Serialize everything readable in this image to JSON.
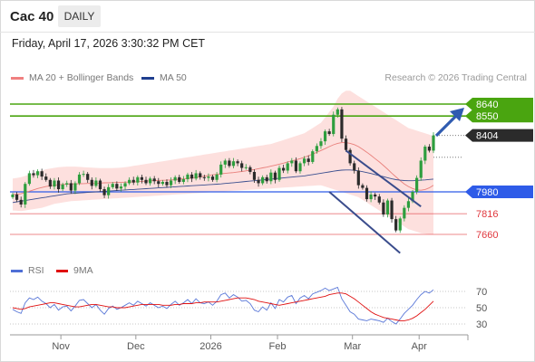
{
  "header": {
    "title": "Cac 40",
    "period": "DAILY",
    "datetime": "Friday, April 17, 2026 3:30:32 PM CET",
    "credit": "Research © 2026 Trading Central"
  },
  "legend": {
    "ma20": {
      "label": "MA 20 + Bollinger Bands",
      "color": "#f08080"
    },
    "ma50": {
      "label": "MA 50",
      "color": "#1f3f8f"
    }
  },
  "rsi_legend": {
    "rsi": {
      "label": "RSI",
      "color": "#4f6fd6"
    },
    "ma9": {
      "label": "9MA",
      "color": "#e01010"
    }
  },
  "chart_data": [
    {
      "type": "candlestick",
      "title": "Cac 40",
      "x_ticks": [
        "Nov",
        "Dec",
        "2026",
        "Feb",
        "Mar",
        "Apr"
      ],
      "levels": [
        {
          "value": 8640,
          "label": "8640",
          "kind": "resistance",
          "color": "#4aa510"
        },
        {
          "value": 8550,
          "label": "8550",
          "kind": "resistance",
          "color": "#4aa510"
        },
        {
          "value": 8404,
          "label": "8404",
          "kind": "last",
          "color": "#2b2b2b"
        },
        {
          "value": 7980,
          "label": "7980",
          "kind": "pivot",
          "color": "#2e5be8"
        },
        {
          "value": 7816,
          "label": "7816",
          "kind": "support",
          "color": "#e0383e"
        },
        {
          "value": 7660,
          "label": "7660",
          "kind": "support",
          "color": "#e0383e"
        }
      ],
      "closes": [
        7960,
        7920,
        7885,
        8040,
        8120,
        8105,
        8135,
        8095,
        8070,
        8020,
        8065,
        8000,
        8035,
        8045,
        7990,
        8045,
        8110,
        8115,
        8070,
        8025,
        8065,
        8000,
        7955,
        8015,
        8040,
        8005,
        8020,
        8045,
        8070,
        8050,
        8090,
        8070,
        8045,
        8080,
        8060,
        8040,
        8055,
        8030,
        8065,
        8090,
        8055,
        8075,
        8110,
        8080,
        8120,
        8090,
        8085,
        8095,
        8070,
        8110,
        8185,
        8215,
        8175,
        8210,
        8195,
        8160,
        8165,
        8130,
        8070,
        8045,
        8090,
        8060,
        8125,
        8070,
        8160,
        8140,
        8195,
        8215,
        8135,
        8195,
        8230,
        8205,
        8285,
        8325,
        8360,
        8435,
        8415,
        8560,
        8600,
        8380,
        8295,
        8195,
        8140,
        8030,
        8010,
        7925,
        7960,
        7945,
        7900,
        7810,
        7915,
        7775,
        7690,
        7780,
        7860,
        7910,
        7980,
        8085,
        8215,
        8320,
        8290,
        8404
      ],
      "ma20": [
        7960,
        7962,
        7966,
        7975,
        7985,
        7995,
        8005,
        8013,
        8020,
        8025,
        8030,
        8033,
        8036,
        8038,
        8040,
        8040,
        8041,
        8042,
        8043,
        8043,
        8044,
        8046,
        8048,
        8049,
        8050,
        8051,
        8052,
        8053,
        8054,
        8055,
        8057,
        8059,
        8061,
        8063,
        8065,
        8066,
        8067,
        8068,
        8070,
        8072,
        8075,
        8078,
        8081,
        8085,
        8089,
        8093,
        8098,
        8103,
        8108,
        8112,
        8116,
        8119,
        8122,
        8125,
        8129,
        8133,
        8138,
        8143,
        8148,
        8154,
        8160,
        8166,
        8173,
        8180,
        8188,
        8196,
        8205,
        8213,
        8221,
        8230,
        8240,
        8252,
        8264,
        8277,
        8291,
        8305,
        8320,
        8334,
        8345,
        8350,
        8350,
        8345,
        8335,
        8320,
        8300,
        8278,
        8255,
        8230,
        8205,
        8178,
        8150,
        8120,
        8092,
        8065,
        8040,
        8020,
        8005,
        7995,
        7992,
        7998,
        8010,
        8030
      ],
      "bb_upper": [
        8080,
        8085,
        8090,
        8100,
        8110,
        8120,
        8130,
        8140,
        8150,
        8155,
        8160,
        8165,
        8168,
        8170,
        8170,
        8170,
        8168,
        8166,
        8164,
        8162,
        8160,
        8158,
        8158,
        8158,
        8158,
        8160,
        8162,
        8165,
        8170,
        8175,
        8180,
        8185,
        8190,
        8195,
        8200,
        8205,
        8210,
        8215,
        8220,
        8225,
        8230,
        8235,
        8240,
        8245,
        8250,
        8255,
        8260,
        8265,
        8270,
        8275,
        8280,
        8285,
        8290,
        8295,
        8300,
        8305,
        8310,
        8315,
        8320,
        8325,
        8330,
        8335,
        8340,
        8350,
        8360,
        8370,
        8380,
        8390,
        8400,
        8410,
        8420,
        8440,
        8460,
        8480,
        8500,
        8540,
        8580,
        8620,
        8680,
        8720,
        8740,
        8740,
        8720,
        8700,
        8680,
        8660,
        8640,
        8620,
        8600,
        8580,
        8560,
        8540,
        8520,
        8500,
        8480,
        8460,
        8450,
        8440,
        8430,
        8420,
        8410,
        8400
      ],
      "bb_lower": [
        7840,
        7838,
        7835,
        7840,
        7845,
        7850,
        7855,
        7860,
        7870,
        7880,
        7890,
        7895,
        7900,
        7905,
        7910,
        7912,
        7914,
        7916,
        7918,
        7920,
        7922,
        7924,
        7926,
        7928,
        7930,
        7932,
        7934,
        7936,
        7938,
        7940,
        7942,
        7944,
        7946,
        7948,
        7950,
        7952,
        7954,
        7956,
        7958,
        7960,
        7962,
        7964,
        7966,
        7968,
        7970,
        7972,
        7974,
        7976,
        7978,
        7980,
        7982,
        7984,
        7986,
        7988,
        7990,
        7992,
        7994,
        7996,
        7998,
        8000,
        8002,
        8004,
        8006,
        8008,
        8010,
        8012,
        8014,
        8016,
        8018,
        8020,
        8022,
        8024,
        8026,
        8028,
        8030,
        8020,
        8010,
        8000,
        7990,
        7980,
        7970,
        7960,
        7950,
        7940,
        7920,
        7900,
        7880,
        7860,
        7840,
        7820,
        7800,
        7780,
        7760,
        7740,
        7720,
        7700,
        7690,
        7680,
        7670,
        7665,
        7660,
        7660
      ],
      "ma50": [
        7900,
        7905,
        7910,
        7915,
        7920,
        7925,
        7930,
        7935,
        7940,
        7945,
        7950,
        7955,
        7960,
        7965,
        7968,
        7970,
        7972,
        7974,
        7976,
        7978,
        7980,
        7982,
        7984,
        7986,
        7988,
        7990,
        7992,
        7994,
        7996,
        7998,
        8000,
        8002,
        8004,
        8006,
        8008,
        8010,
        8012,
        8014,
        8016,
        8018,
        8020,
        8022,
        8024,
        8026,
        8028,
        8030,
        8032,
        8034,
        8036,
        8038,
        8040,
        8043,
        8046,
        8049,
        8052,
        8055,
        8058,
        8061,
        8064,
        8067,
        8070,
        8073,
        8076,
        8079,
        8082,
        8085,
        8088,
        8091,
        8094,
        8097,
        8100,
        8105,
        8110,
        8115,
        8120,
        8125,
        8130,
        8135,
        8140,
        8143,
        8145,
        8145,
        8142,
        8138,
        8132,
        8125,
        8118,
        8110,
        8102,
        8094,
        8086,
        8078,
        8072,
        8068,
        8065,
        8064,
        8064,
        8066,
        8068,
        8070,
        8073,
        8076
      ],
      "ylim": [
        7500,
        8900
      ]
    },
    {
      "type": "line",
      "title": "RSI",
      "series": [
        {
          "name": "RSI",
          "values": [
            48,
            45,
            43,
            56,
            62,
            60,
            63,
            58,
            55,
            50,
            54,
            47,
            51,
            52,
            46,
            52,
            59,
            60,
            55,
            50,
            54,
            47,
            42,
            49,
            52,
            48,
            50,
            53,
            56,
            53,
            58,
            55,
            52,
            56,
            53,
            50,
            52,
            49,
            54,
            58,
            53,
            56,
            60,
            55,
            61,
            56,
            55,
            57,
            53,
            58,
            66,
            68,
            62,
            66,
            63,
            58,
            59,
            55,
            47,
            45,
            51,
            47,
            56,
            49,
            60,
            57,
            63,
            65,
            55,
            62,
            65,
            61,
            67,
            69,
            71,
            74,
            71,
            73,
            75,
            61,
            53,
            45,
            42,
            36,
            35,
            34,
            36,
            35,
            34,
            32,
            37,
            33,
            30,
            36,
            43,
            48,
            53,
            60,
            66,
            70,
            68,
            72
          ]
        },
        {
          "name": "9MA",
          "values": [
            50,
            49,
            48,
            49,
            51,
            52,
            53,
            54,
            55,
            56,
            56,
            55,
            54,
            53,
            52,
            51,
            51,
            52,
            53,
            54,
            54,
            53,
            52,
            51,
            51,
            50,
            50,
            50,
            51,
            52,
            53,
            54,
            54,
            54,
            54,
            54,
            53,
            53,
            53,
            54,
            54,
            55,
            55,
            55,
            56,
            56,
            57,
            57,
            57,
            57,
            58,
            59,
            60,
            61,
            62,
            62,
            62,
            61,
            60,
            58,
            57,
            56,
            55,
            54,
            53,
            54,
            55,
            56,
            57,
            58,
            59,
            60,
            61,
            62,
            63,
            64,
            66,
            67,
            68,
            68,
            67,
            64,
            61,
            57,
            53,
            49,
            45,
            42,
            40,
            38,
            37,
            36,
            35,
            34,
            34,
            35,
            37,
            40,
            44,
            48,
            53,
            58
          ]
        }
      ],
      "yticks": [
        30,
        50,
        70
      ],
      "ylim": [
        20,
        80
      ]
    }
  ]
}
